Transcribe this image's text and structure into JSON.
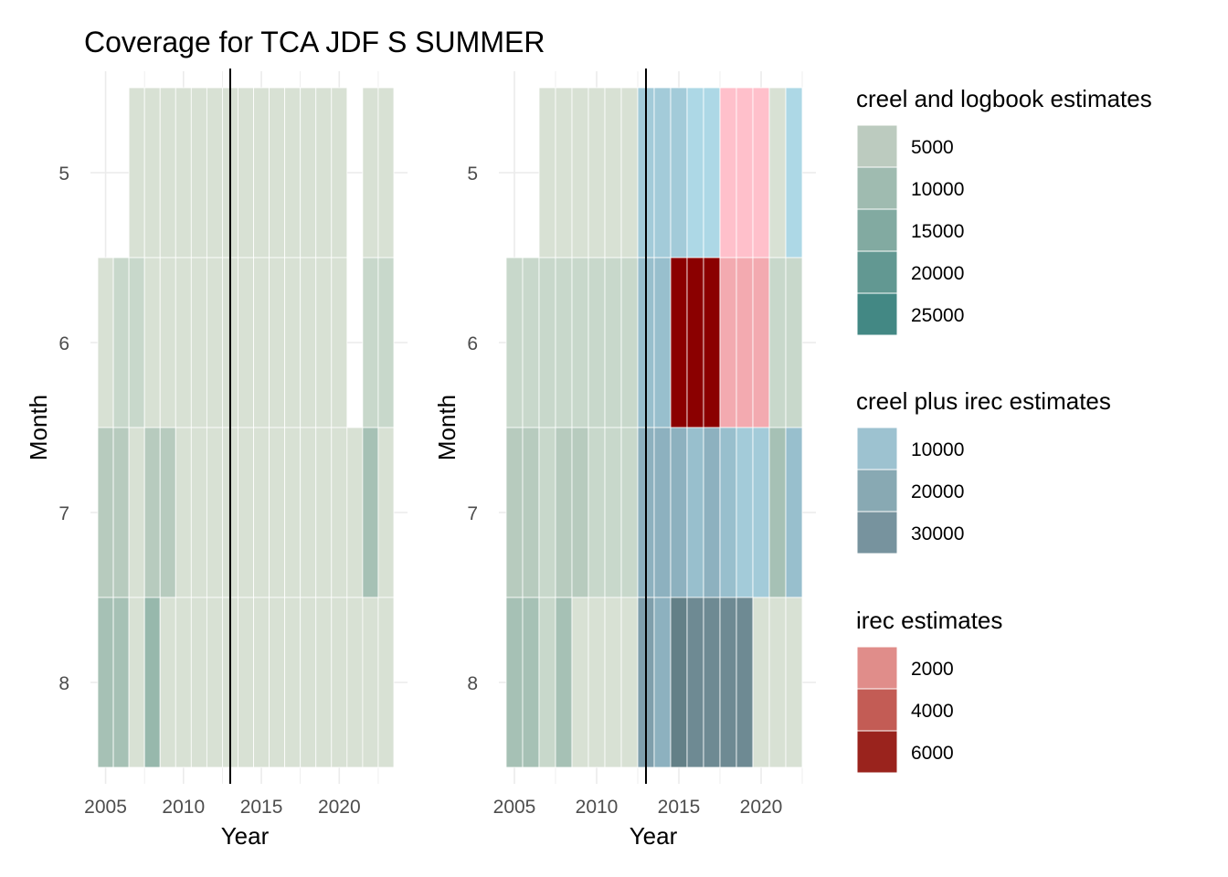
{
  "chart_data": {
    "type": "heatmap",
    "title": "Coverage for TCA JDF S SUMMER",
    "xlabel": "Year",
    "ylabel": "Month",
    "x_ticks": [
      "2005",
      "2010",
      "2015",
      "2020"
    ],
    "y_ticks": [
      "5",
      "6",
      "7",
      "8"
    ],
    "xlim": [
      2004,
      2024
    ],
    "ylim": [
      4.5,
      8.5
    ],
    "vline_year": 2013,
    "grid": true,
    "legend_position": "right",
    "colors": {
      "creel_1": "#d8e1d4",
      "creel_2": "#c8d8cb",
      "creel_3": "#b7cbbe",
      "creel_4": "#a6c1b5",
      "creel_5": "#97b8ac",
      "pink_1": "#ffc0cb",
      "pink_2": "#f3aab0",
      "darkred": "#8b0000",
      "blue_1": "#add8e6",
      "blue_2": "#a3cbd9",
      "blue_3": "#98bfcd",
      "blue_4": "#8db1bf",
      "blue_5": "#7f9fac",
      "blue_6": "#6e8a93",
      "blue_7": "#638087",
      "line": "#000000"
    },
    "panels": [
      {
        "name": "left",
        "cells": {
          "5": [
            "",
            "",
            "creel_1",
            "creel_1",
            "creel_1",
            "creel_1",
            "creel_1",
            "creel_1",
            "creel_1",
            "creel_1",
            "creel_1",
            "creel_1",
            "creel_1",
            "creel_1",
            "creel_1",
            "creel_1",
            "",
            "creel_1",
            "creel_1"
          ],
          "6": [
            "creel_1",
            "creel_2",
            "creel_2",
            "creel_1",
            "creel_1",
            "creel_1",
            "creel_1",
            "creel_1",
            "creel_1",
            "creel_1",
            "creel_1",
            "creel_1",
            "creel_1",
            "creel_1",
            "creel_1",
            "creel_1",
            "",
            "creel_2",
            "creel_2"
          ],
          "7": [
            "creel_3",
            "creel_3",
            "creel_1",
            "creel_3",
            "creel_3",
            "creel_1",
            "creel_1",
            "creel_1",
            "creel_1",
            "creel_1",
            "creel_1",
            "creel_1",
            "creel_1",
            "creel_1",
            "creel_1",
            "creel_1",
            "creel_1",
            "creel_4",
            "creel_1"
          ],
          "8": [
            "creel_4",
            "creel_4",
            "creel_1",
            "creel_5",
            "creel_1",
            "creel_1",
            "creel_1",
            "creel_1",
            "creel_1",
            "creel_1",
            "creel_1",
            "creel_1",
            "creel_1",
            "creel_1",
            "creel_1",
            "creel_1",
            "creel_1",
            "creel_1",
            "creel_1"
          ]
        }
      },
      {
        "name": "right",
        "cells": {
          "5": [
            "",
            "",
            "creel_1",
            "creel_1",
            "creel_1",
            "creel_1",
            "creel_1",
            "creel_1",
            "blue_2",
            "blue_2",
            "blue_2",
            "blue_1",
            "blue_1",
            "pink_1",
            "pink_1",
            "pink_1",
            "creel_1",
            "blue_1"
          ],
          "6": [
            "creel_2",
            "creel_2",
            "creel_2",
            "creel_2",
            "creel_2",
            "creel_2",
            "creel_2",
            "creel_2",
            "blue_3",
            "blue_3",
            "darkred",
            "darkred",
            "darkred",
            "pink_2",
            "pink_2",
            "pink_2",
            "creel_2",
            "creel_2"
          ],
          "7": [
            "creel_3",
            "creel_3",
            "creel_2",
            "creel_3",
            "creel_3",
            "creel_2",
            "creel_2",
            "creel_2",
            "blue_4",
            "blue_4",
            "blue_4",
            "blue_3",
            "blue_4",
            "blue_3",
            "blue_2",
            "blue_2",
            "creel_4",
            "blue_3"
          ],
          "8": [
            "creel_4",
            "creel_4",
            "creel_2",
            "creel_4",
            "creel_1",
            "creel_1",
            "creel_1",
            "creel_1",
            "blue_5",
            "blue_4",
            "blue_7",
            "blue_6",
            "blue_6",
            "blue_6",
            "blue_6",
            "creel_1",
            "creel_1",
            "creel_1"
          ]
        }
      }
    ],
    "legends": [
      {
        "title": "creel and logbook estimates",
        "entries": [
          {
            "label": "5000",
            "color": "#bccbbf"
          },
          {
            "label": "10000",
            "color": "#9fbbb0"
          },
          {
            "label": "15000",
            "color": "#82aaa1"
          },
          {
            "label": "20000",
            "color": "#629892"
          },
          {
            "label": "25000",
            "color": "#438884"
          }
        ]
      },
      {
        "title": "creel plus irec estimates",
        "entries": [
          {
            "label": "10000",
            "color": "#9dc2d0"
          },
          {
            "label": "20000",
            "color": "#88a9b3"
          },
          {
            "label": "30000",
            "color": "#77939e"
          }
        ]
      },
      {
        "title": "irec estimates",
        "entries": [
          {
            "label": "2000",
            "color": "#e08d8a"
          },
          {
            "label": "4000",
            "color": "#c35c55"
          },
          {
            "label": "6000",
            "color": "#9a231d"
          }
        ]
      }
    ]
  }
}
